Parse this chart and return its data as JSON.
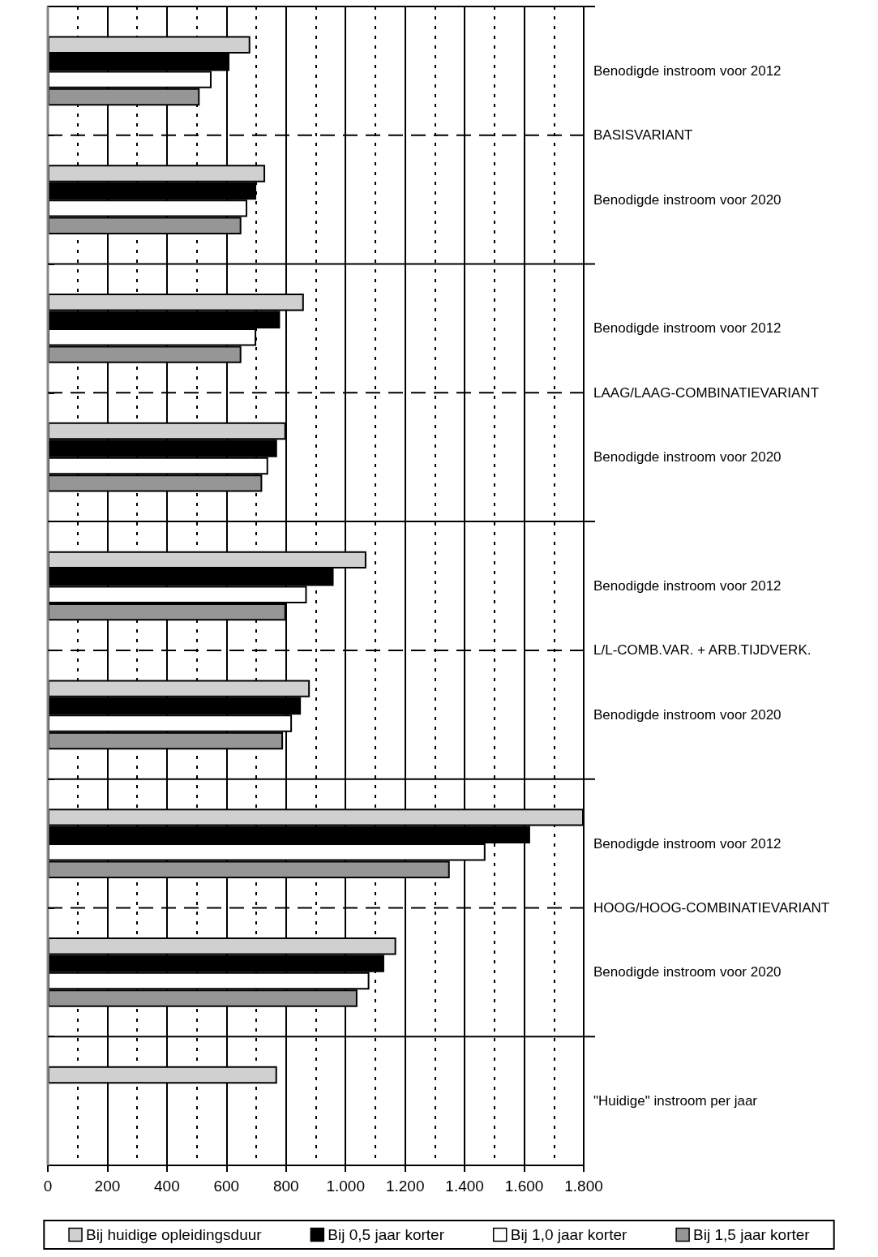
{
  "chart_data": {
    "type": "bar",
    "orientation": "horizontal",
    "categories": [
      "Benodigde instroom voor 2012",
      "Benodigde instroom voor 2020",
      "Benodigde instroom voor 2012",
      "Benodigde instroom voor 2020",
      "Benodigde instroom voor 2012",
      "Benodigde instroom voor 2020",
      "Benodigde instroom voor 2012",
      "Benodigde instroom voor 2020",
      "\"Huidige\" instroom per jaar"
    ],
    "series": [
      {
        "name": "Bij huidige opleidingsduur",
        "color": "#d0d0d0",
        "values": [
          680,
          730,
          860,
          800,
          1070,
          880,
          1800,
          1170,
          770
        ]
      },
      {
        "name": "Bij 0,5 jaar korter",
        "color": "#000000",
        "values": [
          610,
          700,
          780,
          770,
          960,
          850,
          1620,
          1130,
          null
        ]
      },
      {
        "name": "Bij 1,0 jaar korter",
        "color": "#ffffff",
        "values": [
          550,
          670,
          700,
          740,
          870,
          820,
          1470,
          1080,
          null
        ]
      },
      {
        "name": "Bij 1,5 jaar korter",
        "color": "#969696",
        "values": [
          510,
          650,
          650,
          720,
          800,
          790,
          1350,
          1040,
          null
        ]
      }
    ],
    "annotations": [
      "BASISVARIANT",
      "LAAG/LAAG-COMBINATIEVARIANT",
      "L/L-COMB.VAR. + ARB.TIJDVERK.",
      "HOOG/HOOG-COMBINATIEVARIANT"
    ],
    "xlim": [
      0,
      1800
    ],
    "xticks": [
      {
        "value": 0,
        "label": "0"
      },
      {
        "value": 200,
        "label": "200"
      },
      {
        "value": 400,
        "label": "400"
      },
      {
        "value": 600,
        "label": "600"
      },
      {
        "value": 800,
        "label": "800"
      },
      {
        "value": 1000,
        "label": "1.000"
      },
      {
        "value": 1200,
        "label": "1.200"
      },
      {
        "value": 1400,
        "label": "1.400"
      },
      {
        "value": 1600,
        "label": "1.600"
      },
      {
        "value": 1800,
        "label": "1.800"
      }
    ],
    "grid": "x",
    "legend": "bottom"
  }
}
